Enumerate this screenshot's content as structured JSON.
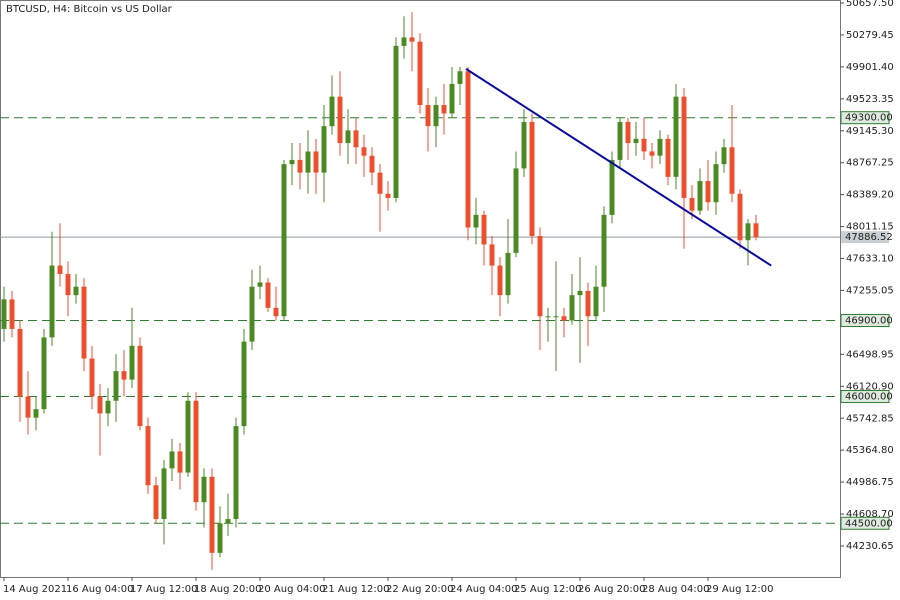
{
  "chart_data": {
    "type": "candlestick",
    "title": "BTCUSD, H4:  Bitcoin vs US Dollar",
    "up_color": "#4a8a22",
    "down_color": "#ec4f2e",
    "xlim": [
      -0.5,
      104.5
    ],
    "ylim": [
      43864,
      50693
    ],
    "xticks": [
      {
        "value": 0,
        "label": "14 Aug 2021"
      },
      {
        "value": 8,
        "label": "16 Aug 04:00"
      },
      {
        "value": 16,
        "label": "17 Aug 12:00"
      },
      {
        "value": 24,
        "label": "18 Aug 20:00"
      },
      {
        "value": 32,
        "label": "20 Aug 04:00"
      },
      {
        "value": 40,
        "label": "21 Aug 12:00"
      },
      {
        "value": 48,
        "label": "22 Aug 20:00"
      },
      {
        "value": 56,
        "label": "24 Aug 04:00"
      },
      {
        "value": 64,
        "label": "25 Aug 12:00"
      },
      {
        "value": 72,
        "label": "26 Aug 20:00"
      },
      {
        "value": 80,
        "label": "28 Aug 04:00"
      },
      {
        "value": 88,
        "label": "29 Aug 12:00"
      }
    ],
    "yticks": [
      {
        "value": 50657.5,
        "label": "50657.50"
      },
      {
        "value": 50279.45,
        "label": "50279.45"
      },
      {
        "value": 49901.4,
        "label": "49901.40"
      },
      {
        "value": 49523.35,
        "label": "49523.35"
      },
      {
        "value": 49145.3,
        "label": "49145.30"
      },
      {
        "value": 48767.25,
        "label": "48767.25"
      },
      {
        "value": 48389.2,
        "label": "48389.20"
      },
      {
        "value": 48011.15,
        "label": "48011.15"
      },
      {
        "value": 47633.1,
        "label": "47633.10"
      },
      {
        "value": 47255.05,
        "label": "47255.05"
      },
      {
        "value": 46498.95,
        "label": "46498.95"
      },
      {
        "value": 46120.9,
        "label": "46120.90"
      },
      {
        "value": 45742.85,
        "label": "45742.85"
      },
      {
        "value": 45364.8,
        "label": "45364.80"
      },
      {
        "value": 44986.75,
        "label": "44986.75"
      },
      {
        "value": 44608.7,
        "label": "44608.70"
      },
      {
        "value": 44230.65,
        "label": "44230.65"
      }
    ],
    "open": [
      46800,
      47150,
      46800,
      46000,
      45750,
      45850,
      46700,
      47550,
      47450,
      47200,
      47300,
      46450,
      46000,
      45800,
      45950,
      46300,
      46200,
      46600,
      45650,
      44950,
      44550,
      45150,
      45350,
      45100,
      45950,
      44750,
      45050,
      44150,
      44500,
      44550,
      45650,
      46650,
      47300,
      47350,
      47050,
      46950,
      48750,
      48800,
      48650,
      48900,
      48650,
      49200,
      49550,
      49000,
      49150,
      48950,
      48850,
      48650,
      48400,
      48350,
      50150,
      50250,
      50200,
      49450,
      49200,
      49450,
      49350,
      49700,
      49850,
      48000,
      48150,
      47800,
      47550,
      47200,
      47700,
      48700,
      49250,
      47900,
      46950,
      46950,
      46950,
      46900,
      47200,
      47250,
      46950,
      47300,
      48150,
      48800,
      49250,
      49000,
      49050,
      48900,
      48850,
      49050,
      48600,
      49550,
      48350,
      48200,
      48550,
      48300,
      48750,
      48950,
      48400,
      47850,
      48050
    ],
    "high": [
      47300,
      47250,
      46900,
      46300,
      46000,
      46800,
      47950,
      48050,
      47600,
      47450,
      47400,
      46600,
      46150,
      46100,
      46500,
      46550,
      47050,
      46700,
      45750,
      45050,
      45250,
      45500,
      45450,
      46050,
      46050,
      45150,
      45150,
      44700,
      44850,
      45750,
      46800,
      47500,
      47550,
      47400,
      47300,
      48800,
      49000,
      49000,
      49150,
      49050,
      49450,
      49800,
      49850,
      49400,
      49300,
      49100,
      48950,
      48750,
      48550,
      50250,
      50500,
      50550,
      50300,
      49650,
      49550,
      49700,
      49900,
      49900,
      49900,
      48350,
      48200,
      47900,
      47650,
      48100,
      48900,
      49400,
      49350,
      48000,
      47050,
      47600,
      47050,
      47450,
      47650,
      47350,
      47550,
      48250,
      48900,
      49300,
      49300,
      49250,
      49300,
      49000,
      49150,
      49100,
      49700,
      49650,
      48500,
      48700,
      48800,
      48900,
      49050,
      49450,
      48450,
      48100,
      48150
    ],
    "low": [
      46650,
      46700,
      45700,
      45550,
      45600,
      45800,
      46600,
      47300,
      46950,
      47100,
      46300,
      45850,
      45300,
      45650,
      45700,
      46000,
      46100,
      45600,
      44850,
      44500,
      44250,
      45000,
      44900,
      45050,
      44650,
      44450,
      43950,
      44100,
      44350,
      44450,
      45550,
      46550,
      47150,
      47000,
      46900,
      46900,
      48500,
      48450,
      48400,
      48400,
      48300,
      49100,
      48850,
      48750,
      48750,
      48600,
      48500,
      47950,
      48200,
      48300,
      50000,
      49850,
      49350,
      48900,
      48950,
      49100,
      49300,
      49450,
      47850,
      47800,
      47550,
      47200,
      46950,
      47100,
      47650,
      48600,
      47800,
      46550,
      46650,
      46300,
      46700,
      46850,
      46400,
      46600,
      46900,
      47000,
      48050,
      48700,
      48800,
      48850,
      48800,
      48700,
      48750,
      48500,
      48450,
      47750,
      48100,
      48150,
      48200,
      48150,
      48650,
      48300,
      47750,
      47550,
      47850
    ],
    "close": [
      47150,
      46800,
      46000,
      45750,
      45850,
      46700,
      47550,
      47450,
      47200,
      47300,
      46450,
      46000,
      45800,
      45950,
      46300,
      46200,
      46600,
      45650,
      44950,
      44550,
      45150,
      45350,
      45100,
      45950,
      44750,
      45050,
      44150,
      44500,
      44550,
      45650,
      46650,
      47300,
      47350,
      47050,
      46950,
      48750,
      48800,
      48650,
      48900,
      48650,
      49200,
      49550,
      49000,
      49150,
      48950,
      48850,
      48650,
      48400,
      48350,
      50150,
      50250,
      50200,
      49450,
      49200,
      49450,
      49350,
      49700,
      49850,
      48000,
      48150,
      47800,
      47550,
      47200,
      47700,
      48700,
      49250,
      47900,
      46950,
      46950,
      46950,
      46900,
      47200,
      47250,
      46950,
      47300,
      48150,
      48800,
      49250,
      49000,
      49050,
      48900,
      48850,
      49050,
      48600,
      49550,
      48350,
      48200,
      48550,
      48300,
      48750,
      48950,
      48400,
      47850,
      48050,
      47886.52
    ],
    "levels": [
      {
        "value": 49300,
        "label": "49300.00"
      },
      {
        "value": 46900,
        "label": "46900.00"
      },
      {
        "value": 46000,
        "label": "46000.00"
      },
      {
        "value": 44500,
        "label": "44500.00"
      }
    ],
    "level_color": "#2e7d32",
    "current_price": {
      "value": 47886.52,
      "label": "47886.52"
    },
    "trendline": {
      "x": [
        57.75,
        95.9
      ],
      "y": [
        49878,
        47550
      ],
      "color": "#0a0aa0"
    }
  }
}
